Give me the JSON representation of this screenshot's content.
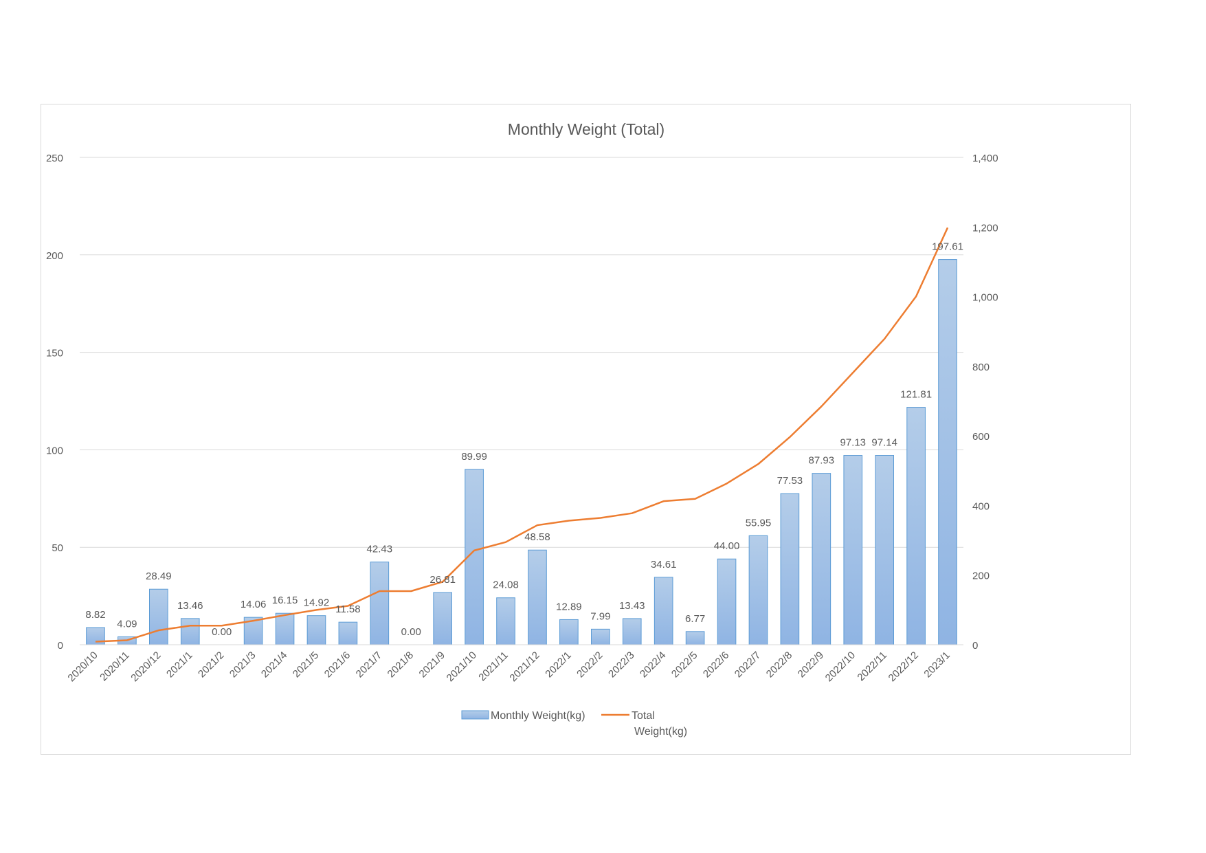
{
  "chart_data": {
    "type": "bar+line",
    "title": "Monthly Weight (Total)",
    "categories": [
      "2020/10",
      "2020/11",
      "2020/12",
      "2021/1",
      "2021/2",
      "2021/3",
      "2021/4",
      "2021/5",
      "2021/6",
      "2021/7",
      "2021/8",
      "2021/9",
      "2021/10",
      "2021/11",
      "2021/12",
      "2022/1",
      "2022/2",
      "2022/3",
      "2022/4",
      "2022/5",
      "2022/6",
      "2022/7",
      "2022/8",
      "2022/9",
      "2022/10",
      "2022/11",
      "2022/12",
      "2023/1"
    ],
    "series": [
      {
        "name": "Monthly Weight(kg)",
        "type": "bar",
        "axis": "left",
        "color": "#9dc3e6",
        "border_color": "#5b9bd5",
        "values": [
          8.82,
          4.09,
          28.49,
          13.46,
          0.0,
          14.06,
          16.15,
          14.92,
          11.58,
          42.43,
          0.0,
          26.81,
          89.99,
          24.08,
          48.58,
          12.89,
          7.99,
          13.43,
          34.61,
          6.77,
          44.0,
          55.95,
          77.53,
          87.93,
          97.13,
          97.14,
          121.81,
          197.61
        ],
        "data_labels": [
          "8.82",
          "4.09",
          "28.49",
          "13.46",
          "0.00",
          "14.06",
          "16.15",
          "14.92",
          "11.58",
          "42.43",
          "0.00",
          "26.81",
          "89.99",
          "24.08",
          "48.58",
          "12.89",
          "7.99",
          "13.43",
          "34.61",
          "6.77",
          "44.00",
          "55.95",
          "77.53",
          "87.93",
          "97.13",
          "97.14",
          "121.81",
          "197.61"
        ]
      },
      {
        "name": "Total Weight(kg)",
        "legend_lines": [
          "Total",
          "Weight(kg)"
        ],
        "type": "line",
        "axis": "right",
        "color": "#ed7d31",
        "values": [
          8.82,
          12.91,
          41.4,
          54.86,
          54.86,
          68.92,
          85.07,
          99.99,
          111.57,
          154.0,
          154.0,
          180.81,
          270.8,
          294.88,
          343.46,
          356.35,
          364.34,
          377.77,
          412.38,
          419.15,
          463.15,
          519.1,
          596.63,
          684.56,
          781.69,
          878.83,
          1000.64,
          1198.25
        ]
      }
    ],
    "y_left": {
      "min": 0,
      "max": 250,
      "ticks": [
        0,
        50,
        100,
        150,
        200,
        250
      ],
      "tick_labels": [
        "0",
        "50",
        "100",
        "150",
        "200",
        "250"
      ]
    },
    "y_right": {
      "min": 0,
      "max": 1400,
      "ticks": [
        0,
        200,
        400,
        600,
        800,
        1000,
        1200,
        1400
      ],
      "tick_labels": [
        "0",
        "200",
        "400",
        "600",
        "800",
        "1,000",
        "1,200",
        "1,400"
      ]
    },
    "grid": true,
    "legend_position": "bottom"
  }
}
